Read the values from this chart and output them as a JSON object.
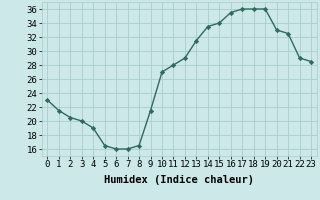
{
  "x": [
    0,
    1,
    2,
    3,
    4,
    5,
    6,
    7,
    8,
    9,
    10,
    11,
    12,
    13,
    14,
    15,
    16,
    17,
    18,
    19,
    20,
    21,
    22,
    23
  ],
  "y": [
    23,
    21.5,
    20.5,
    20,
    19,
    16.5,
    16,
    16,
    16.5,
    21.5,
    27,
    28,
    29,
    31.5,
    33.5,
    34,
    35.5,
    36,
    36,
    36,
    33,
    32.5,
    29,
    28.5
  ],
  "xlabel": "Humidex (Indice chaleur)",
  "xlim": [
    -0.5,
    23.5
  ],
  "ylim": [
    15,
    37
  ],
  "yticks": [
    16,
    18,
    20,
    22,
    24,
    26,
    28,
    30,
    32,
    34,
    36
  ],
  "xticks": [
    0,
    1,
    2,
    3,
    4,
    5,
    6,
    7,
    8,
    9,
    10,
    11,
    12,
    13,
    14,
    15,
    16,
    17,
    18,
    19,
    20,
    21,
    22,
    23
  ],
  "line_color": "#2e6b5e",
  "marker": "D",
  "marker_size": 2.2,
  "bg_color": "#cce8e8",
  "grid_color": "#aacccc",
  "xlabel_fontsize": 7.5,
  "tick_fontsize": 6.5
}
